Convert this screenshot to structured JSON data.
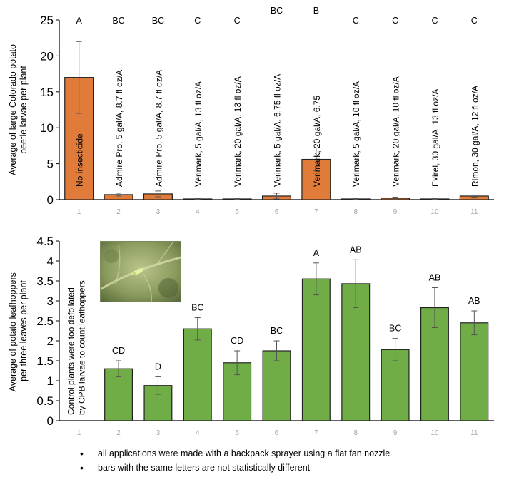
{
  "chart_data": [
    {
      "type": "bar",
      "ylabel": "Average of large Colorado potato beetle larvae per plant",
      "ylim": [
        0,
        25
      ],
      "yticks": [
        0,
        5,
        10,
        15,
        20,
        25
      ],
      "categories": [
        "1",
        "2",
        "3",
        "4",
        "5",
        "6",
        "7",
        "8",
        "9",
        "10",
        "11"
      ],
      "values": [
        17.0,
        0.7,
        0.8,
        0.1,
        0.1,
        0.5,
        5.6,
        0.1,
        0.2,
        0.1,
        0.5
      ],
      "errors": [
        5.0,
        0.2,
        0.4,
        0.05,
        0.05,
        0.4,
        1.6,
        0.05,
        0.15,
        0.05,
        0.15
      ],
      "letters": [
        "A",
        "BC",
        "BC",
        "C",
        "C",
        "BC",
        "B",
        "C",
        "C",
        "C",
        "C"
      ],
      "bar_labels": [
        "No insecticide",
        "Admire Pro, 5 gal/A, 8.7 fl oz/A",
        "Admire Pro, 5 gal/A, 8.7 fl oz/A",
        "Verimark,  5 gal/A, 13 fl oz/A",
        "Verimark,  20 gal/A, 13 fl oz/A",
        "Verimark,  5 gal/A, 6.75 fl oz/A",
        "Verimark,  20 gal/A, 6.75",
        "Verimark,  5 gal/A, 10 fl oz/A",
        "Verimark,  20 gal/A, 10 fl oz/A",
        "Exirel,  30 gal/A, 13 fl oz/A",
        "Rimon,  30 gal/A, 12 fl oz/A"
      ],
      "bar_color": "#E07B39",
      "grid": false
    },
    {
      "type": "bar",
      "ylabel": "Average of potato leafhoppers  per three leaves per plant",
      "ylim": [
        0,
        4.5
      ],
      "yticks": [
        0,
        0.5,
        1,
        1.5,
        2,
        2.5,
        3,
        3.5,
        4,
        4.5
      ],
      "categories": [
        "1",
        "2",
        "3",
        "4",
        "5",
        "6",
        "7",
        "8",
        "9",
        "10",
        "11"
      ],
      "values": [
        null,
        1.3,
        0.88,
        2.3,
        1.45,
        1.75,
        3.55,
        3.43,
        1.78,
        2.83,
        2.45
      ],
      "errors": [
        null,
        0.2,
        0.22,
        0.28,
        0.3,
        0.25,
        0.4,
        0.6,
        0.28,
        0.5,
        0.3
      ],
      "letters": [
        "",
        "CD",
        "D",
        "BC",
        "CD",
        "BC",
        "A",
        "AB",
        "BC",
        "AB",
        "AB"
      ],
      "annotation": "Control plants were too defoliated by CPB larvae to count leafhoppers",
      "bar_color": "#70AD47",
      "grid": false
    }
  ],
  "notes": [
    "all applications were made with a backpack sprayer using a flat fan nozzle",
    "bars with the same letters are not statistically different"
  ]
}
